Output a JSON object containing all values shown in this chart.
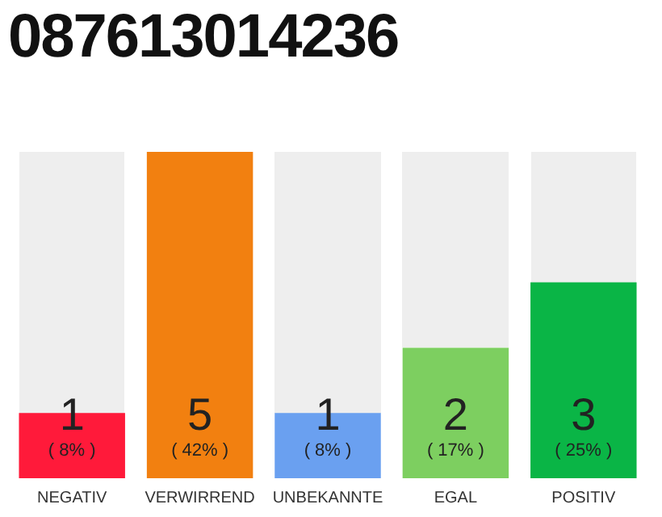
{
  "chart_data": {
    "type": "bar",
    "title": "087613014236",
    "categories": [
      "NEGATIV",
      "VERWIRREND",
      "UNBEKANNTE",
      "EGAL",
      "POSITIV"
    ],
    "values": [
      1,
      5,
      1,
      2,
      3
    ],
    "colors": [
      "#ff1a3a",
      "#f28010",
      "#6aa0f0",
      "#7dcf60",
      "#0ab546"
    ],
    "data_labels": true,
    "annotations": [
      "( 8% )",
      "( 42% )",
      "( 8% )",
      "( 17% )",
      "( 25% )"
    ],
    "grid": false,
    "legend": false
  }
}
